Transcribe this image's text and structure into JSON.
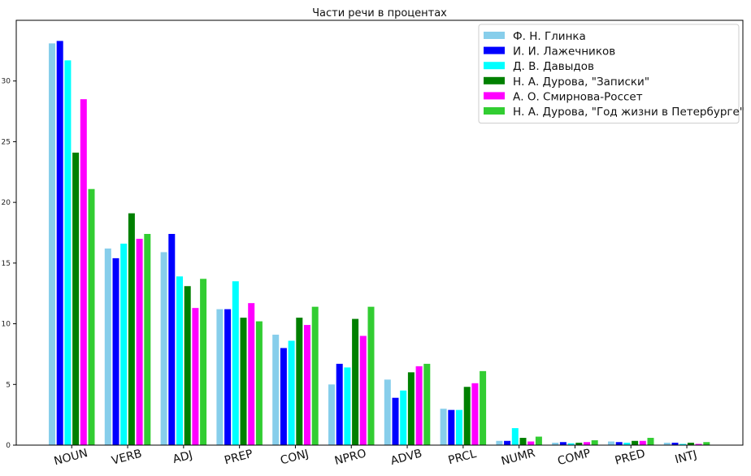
{
  "chart_data": {
    "type": "bar",
    "title": "Части речи в процентах",
    "xlabel": "",
    "ylabel": "",
    "ylim": [
      0,
      35
    ],
    "yticks": [
      0,
      5,
      10,
      15,
      20,
      25,
      30
    ],
    "grid": false,
    "legend_position": "top-right",
    "categories": [
      "NOUN",
      "VERB",
      "ADJ",
      "PREP",
      "CONJ",
      "NPRO",
      "ADVB",
      "PRCL",
      "NUMR",
      "COMP",
      "PRED",
      "INTJ"
    ],
    "series": [
      {
        "name": "Ф. Н. Глинка",
        "color": "#87ceeb",
        "values": [
          33.1,
          16.2,
          15.9,
          11.2,
          9.1,
          5.0,
          5.4,
          3.0,
          0.35,
          0.2,
          0.3,
          0.2
        ]
      },
      {
        "name": "И. И. Лажечников",
        "color": "#0000ff",
        "values": [
          33.3,
          15.4,
          17.4,
          11.2,
          8.0,
          6.7,
          3.9,
          2.9,
          0.35,
          0.25,
          0.25,
          0.2
        ]
      },
      {
        "name": "Д. В. Давыдов",
        "color": "#00ffff",
        "values": [
          31.7,
          16.6,
          13.9,
          13.5,
          8.6,
          6.4,
          4.5,
          2.9,
          1.4,
          0.15,
          0.2,
          0.1
        ]
      },
      {
        "name": "Н. А. Дурова, \"Записки\"",
        "color": "#008000",
        "values": [
          24.1,
          19.1,
          13.1,
          10.5,
          10.5,
          10.4,
          6.0,
          4.8,
          0.6,
          0.2,
          0.35,
          0.2
        ]
      },
      {
        "name": "А. О. Смирнова-Россет",
        "color": "#ff00ff",
        "values": [
          28.5,
          17.0,
          11.3,
          11.7,
          9.9,
          9.0,
          6.5,
          5.1,
          0.3,
          0.25,
          0.35,
          0.1
        ]
      },
      {
        "name": "Н. А. Дурова, \"Год жизни в Петербурге\"",
        "color": "#32cd32",
        "values": [
          21.1,
          17.4,
          13.7,
          10.2,
          11.4,
          11.4,
          6.7,
          6.1,
          0.7,
          0.4,
          0.6,
          0.25
        ]
      }
    ]
  }
}
